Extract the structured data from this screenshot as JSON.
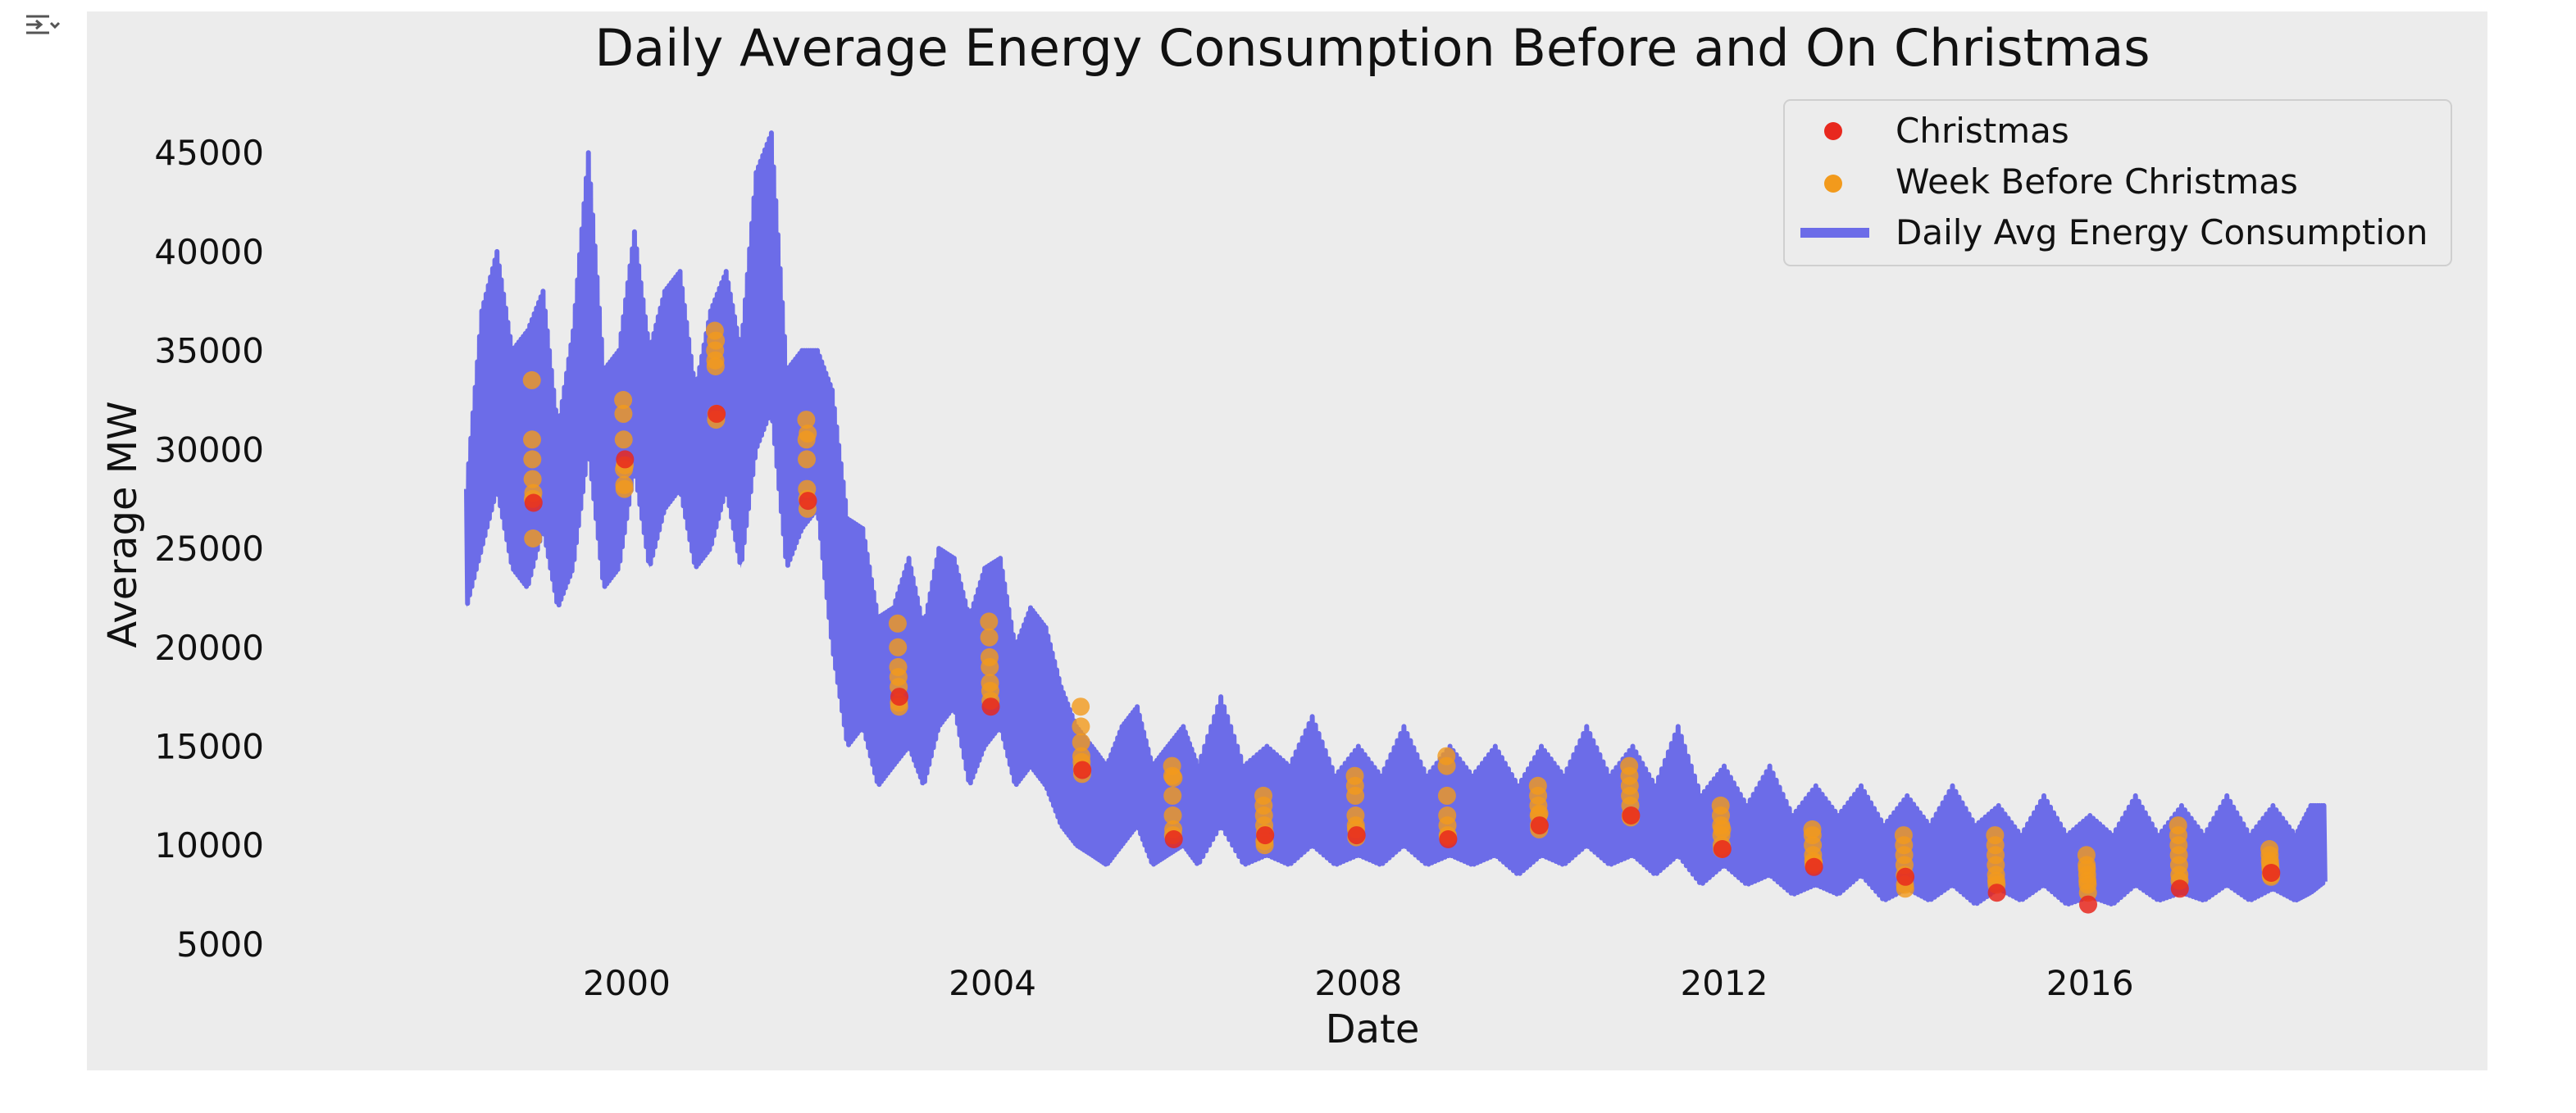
{
  "cell": {
    "output_icon": "output-collapse-icon"
  },
  "chart_data": {
    "type": "line",
    "title": "Daily Average Energy Consumption Before and On Christmas",
    "xlabel": "Date",
    "ylabel": "Average MW",
    "x_type": "date",
    "xlim": [
      "1997-01-01",
      "2019-06-01"
    ],
    "ylim": [
      4500,
      46500
    ],
    "x_ticks": [
      "2000",
      "2004",
      "2008",
      "2012",
      "2016"
    ],
    "y_ticks": [
      5000,
      10000,
      15000,
      20000,
      25000,
      30000,
      35000,
      40000,
      45000
    ],
    "grid": false,
    "legend_position": "top-right",
    "colors": {
      "line": "#6c6ce8",
      "christmas": "#e8281e",
      "week_before": "#f29a1c",
      "plot_background": "#ececec"
    },
    "series": [
      {
        "name": "Daily Avg Energy Consumption",
        "kind": "line",
        "x": [
          "1998-04-01",
          "1998-06-01",
          "1998-08-01",
          "1998-10-01",
          "1998-12-01",
          "1999-02-01",
          "1999-04-01",
          "1999-06-01",
          "1999-08-01",
          "1999-10-01",
          "1999-12-01",
          "2000-02-01",
          "2000-04-01",
          "2000-06-01",
          "2000-08-01",
          "2000-10-01",
          "2000-12-01",
          "2001-02-01",
          "2001-04-01",
          "2001-06-01",
          "2001-08-01",
          "2001-10-01",
          "2001-12-01",
          "2002-02-01",
          "2002-04-01",
          "2002-06-01",
          "2002-08-01",
          "2002-10-01",
          "2002-12-01",
          "2003-02-01",
          "2003-04-01",
          "2003-06-01",
          "2003-08-01",
          "2003-10-01",
          "2003-12-01",
          "2004-02-01",
          "2004-04-01",
          "2004-06-01",
          "2004-08-01",
          "2004-10-01",
          "2004-12-01",
          "2005-02-01",
          "2005-04-01",
          "2005-06-01",
          "2005-08-01",
          "2005-10-01",
          "2005-12-01",
          "2006-02-01",
          "2006-04-01",
          "2006-07-01",
          "2006-10-01",
          "2007-01-01",
          "2007-04-01",
          "2007-07-01",
          "2007-10-01",
          "2008-01-01",
          "2008-04-01",
          "2008-07-01",
          "2008-10-01",
          "2009-01-01",
          "2009-04-01",
          "2009-07-01",
          "2009-10-01",
          "2010-01-01",
          "2010-04-01",
          "2010-07-01",
          "2010-10-01",
          "2011-01-01",
          "2011-04-01",
          "2011-07-01",
          "2011-10-01",
          "2012-01-01",
          "2012-04-01",
          "2012-07-01",
          "2012-10-01",
          "2013-01-01",
          "2013-04-01",
          "2013-07-01",
          "2013-10-01",
          "2014-01-01",
          "2014-04-01",
          "2014-07-01",
          "2014-10-01",
          "2015-01-01",
          "2015-04-01",
          "2015-07-01",
          "2015-10-01",
          "2016-01-01",
          "2016-04-01",
          "2016-07-01",
          "2016-10-01",
          "2017-01-01",
          "2017-04-01",
          "2017-07-01",
          "2017-10-01",
          "2018-01-01",
          "2018-04-01",
          "2018-06-01",
          "2018-08-01"
        ],
        "values": [
          25000,
          33000,
          38000,
          30000,
          31000,
          33000,
          26000,
          32000,
          40000,
          28000,
          30000,
          38000,
          29000,
          34000,
          36000,
          28000,
          32000,
          35000,
          30000,
          38000,
          42000,
          29000,
          30000,
          31000,
          27000,
          21000,
          22000,
          17000,
          18000,
          20000,
          17000,
          21000,
          22000,
          17000,
          20000,
          21000,
          17000,
          19000,
          18000,
          14000,
          13000,
          12000,
          11000,
          13000,
          14000,
          11000,
          12000,
          13000,
          11000,
          14000,
          11000,
          12000,
          11000,
          13000,
          11000,
          12000,
          11000,
          13000,
          11000,
          12000,
          11000,
          12000,
          10000,
          12000,
          11000,
          13000,
          11000,
          12000,
          10000,
          12000,
          10000,
          11000,
          9500,
          11000,
          9000,
          10000,
          9000,
          10500,
          8500,
          9500,
          8500,
          10000,
          8500,
          9500,
          8500,
          10000,
          8500,
          9000,
          8500,
          10000,
          8500,
          9500,
          8500,
          10000,
          8500,
          9500,
          8500,
          9500,
          10000
        ],
        "envelope_min": [
          22000,
          25000,
          28000,
          24000,
          23000,
          26000,
          22000,
          24000,
          30000,
          23000,
          24000,
          29000,
          24000,
          27000,
          28000,
          24000,
          25000,
          28000,
          24000,
          30000,
          32000,
          24000,
          26000,
          27000,
          20000,
          15000,
          16000,
          13000,
          14000,
          15000,
          13000,
          16000,
          17000,
          13000,
          15000,
          16000,
          13000,
          14000,
          13000,
          11000,
          10000,
          9500,
          9000,
          10000,
          11000,
          9000,
          9500,
          10000,
          9000,
          11000,
          9000,
          9500,
          9000,
          10000,
          9000,
          9500,
          9000,
          10000,
          9000,
          9500,
          9000,
          9500,
          8500,
          9500,
          9000,
          10000,
          9000,
          9500,
          8500,
          9500,
          8000,
          9000,
          8000,
          8500,
          7500,
          8000,
          7500,
          8500,
          7200,
          7800,
          7200,
          8000,
          7000,
          7800,
          7200,
          8000,
          7000,
          7400,
          7000,
          8000,
          7200,
          7600,
          7200,
          8000,
          7200,
          7800,
          7200,
          7600,
          8200
        ],
        "envelope_max": [
          28000,
          37000,
          40000,
          35000,
          36000,
          38000,
          31000,
          36000,
          45000,
          34000,
          35000,
          41000,
          35000,
          38000,
          39000,
          33000,
          37000,
          39000,
          35000,
          44000,
          46000,
          34000,
          35000,
          35000,
          33000,
          26500,
          26000,
          21500,
          22000,
          24500,
          21000,
          25000,
          24500,
          21500,
          24000,
          24500,
          20000,
          22000,
          21000,
          18000,
          16000,
          15000,
          14000,
          16000,
          17000,
          14000,
          15000,
          16000,
          14000,
          17500,
          14000,
          15000,
          14000,
          16500,
          13500,
          15000,
          13500,
          16000,
          13500,
          15000,
          13500,
          15000,
          13000,
          15000,
          13500,
          16000,
          13500,
          15000,
          13000,
          16000,
          12500,
          14000,
          12000,
          14000,
          11500,
          13000,
          11500,
          13000,
          11000,
          12500,
          11000,
          13000,
          11000,
          12000,
          10500,
          12500,
          10500,
          11500,
          10500,
          12500,
          10500,
          12000,
          10500,
          12500,
          10500,
          12000,
          10500,
          12000,
          12000
        ]
      },
      {
        "name": "Week Before Christmas",
        "kind": "scatter",
        "x": [
          "1998-12-18",
          "1998-12-19",
          "1998-12-20",
          "1998-12-21",
          "1998-12-22",
          "1998-12-23",
          "1998-12-24",
          "1999-12-18",
          "1999-12-19",
          "1999-12-20",
          "1999-12-21",
          "1999-12-22",
          "1999-12-23",
          "1999-12-24",
          "2000-12-18",
          "2000-12-19",
          "2000-12-20",
          "2000-12-21",
          "2000-12-22",
          "2000-12-23",
          "2000-12-24",
          "2001-12-18",
          "2001-12-19",
          "2001-12-20",
          "2001-12-21",
          "2001-12-22",
          "2001-12-23",
          "2001-12-24",
          "2002-12-18",
          "2002-12-19",
          "2002-12-20",
          "2002-12-21",
          "2002-12-22",
          "2002-12-23",
          "2002-12-24",
          "2003-12-18",
          "2003-12-19",
          "2003-12-20",
          "2003-12-21",
          "2003-12-22",
          "2003-12-23",
          "2003-12-24",
          "2004-12-18",
          "2004-12-19",
          "2004-12-20",
          "2004-12-21",
          "2004-12-22",
          "2004-12-23",
          "2004-12-24",
          "2005-12-18",
          "2005-12-19",
          "2005-12-20",
          "2005-12-21",
          "2005-12-22",
          "2005-12-23",
          "2005-12-24",
          "2006-12-18",
          "2006-12-19",
          "2006-12-20",
          "2006-12-21",
          "2006-12-22",
          "2006-12-23",
          "2006-12-24",
          "2007-12-18",
          "2007-12-19",
          "2007-12-20",
          "2007-12-21",
          "2007-12-22",
          "2007-12-23",
          "2007-12-24",
          "2008-12-18",
          "2008-12-19",
          "2008-12-20",
          "2008-12-21",
          "2008-12-22",
          "2008-12-23",
          "2008-12-24",
          "2009-12-18",
          "2009-12-19",
          "2009-12-20",
          "2009-12-21",
          "2009-12-22",
          "2009-12-23",
          "2009-12-24",
          "2010-12-18",
          "2010-12-19",
          "2010-12-20",
          "2010-12-21",
          "2010-12-22",
          "2010-12-23",
          "2010-12-24",
          "2011-12-18",
          "2011-12-19",
          "2011-12-20",
          "2011-12-21",
          "2011-12-22",
          "2011-12-23",
          "2011-12-24",
          "2012-12-18",
          "2012-12-19",
          "2012-12-20",
          "2012-12-21",
          "2012-12-22",
          "2012-12-23",
          "2012-12-24",
          "2013-12-18",
          "2013-12-19",
          "2013-12-20",
          "2013-12-21",
          "2013-12-22",
          "2013-12-23",
          "2013-12-24",
          "2014-12-18",
          "2014-12-19",
          "2014-12-20",
          "2014-12-21",
          "2014-12-22",
          "2014-12-23",
          "2014-12-24",
          "2015-12-18",
          "2015-12-19",
          "2015-12-20",
          "2015-12-21",
          "2015-12-22",
          "2015-12-23",
          "2015-12-24",
          "2016-12-18",
          "2016-12-19",
          "2016-12-20",
          "2016-12-21",
          "2016-12-22",
          "2016-12-23",
          "2016-12-24",
          "2017-12-18",
          "2017-12-19",
          "2017-12-20",
          "2017-12-21",
          "2017-12-22",
          "2017-12-23",
          "2017-12-24"
        ],
        "values": [
          33500,
          30500,
          29500,
          28500,
          27500,
          25500,
          27800,
          32500,
          31800,
          30500,
          29000,
          28200,
          28000,
          29200,
          36000,
          35000,
          34500,
          34200,
          35500,
          31500,
          31800,
          31500,
          30500,
          29500,
          28000,
          27500,
          27000,
          30800,
          21200,
          20000,
          19000,
          18500,
          18000,
          17200,
          17000,
          21300,
          20500,
          19500,
          19000,
          18200,
          17800,
          17300,
          17000,
          16000,
          15200,
          14500,
          14200,
          13900,
          13600,
          14000,
          13500,
          12500,
          11500,
          10500,
          10800,
          13400,
          12500,
          12000,
          11500,
          11000,
          10200,
          10000,
          10600,
          13500,
          13000,
          12500,
          11500,
          11000,
          10800,
          10400,
          14500,
          14000,
          12500,
          11500,
          11000,
          10500,
          10400,
          13000,
          12500,
          12000,
          11500,
          11000,
          10800,
          11600,
          14000,
          13500,
          13000,
          12500,
          12000,
          11500,
          11400,
          12000,
          11500,
          11000,
          10500,
          10000,
          9800,
          10800,
          10800,
          10500,
          10000,
          9500,
          9200,
          9000,
          9100,
          10500,
          10000,
          9500,
          9000,
          8500,
          8000,
          7800,
          10500,
          10000,
          9500,
          9000,
          8500,
          8200,
          8000,
          9500,
          9000,
          8800,
          8500,
          8200,
          8000,
          7600,
          11000,
          10500,
          10000,
          9500,
          9000,
          8500,
          8200,
          9800,
          9500,
          9200,
          9000,
          8800,
          8500,
          8400
        ]
      },
      {
        "name": "Christmas",
        "kind": "scatter",
        "x": [
          "1998-12-25",
          "1999-12-25",
          "2000-12-25",
          "2001-12-25",
          "2002-12-25",
          "2003-12-25",
          "2004-12-25",
          "2005-12-25",
          "2006-12-25",
          "2007-12-25",
          "2008-12-25",
          "2009-12-25",
          "2010-12-25",
          "2011-12-25",
          "2012-12-25",
          "2013-12-25",
          "2014-12-25",
          "2015-12-25",
          "2016-12-25",
          "2017-12-25"
        ],
        "values": [
          27300,
          29500,
          31800,
          27400,
          17500,
          17000,
          13800,
          10300,
          10500,
          10500,
          10300,
          11000,
          11500,
          9800,
          8900,
          8400,
          7600,
          7000,
          7800,
          8600
        ]
      }
    ]
  }
}
